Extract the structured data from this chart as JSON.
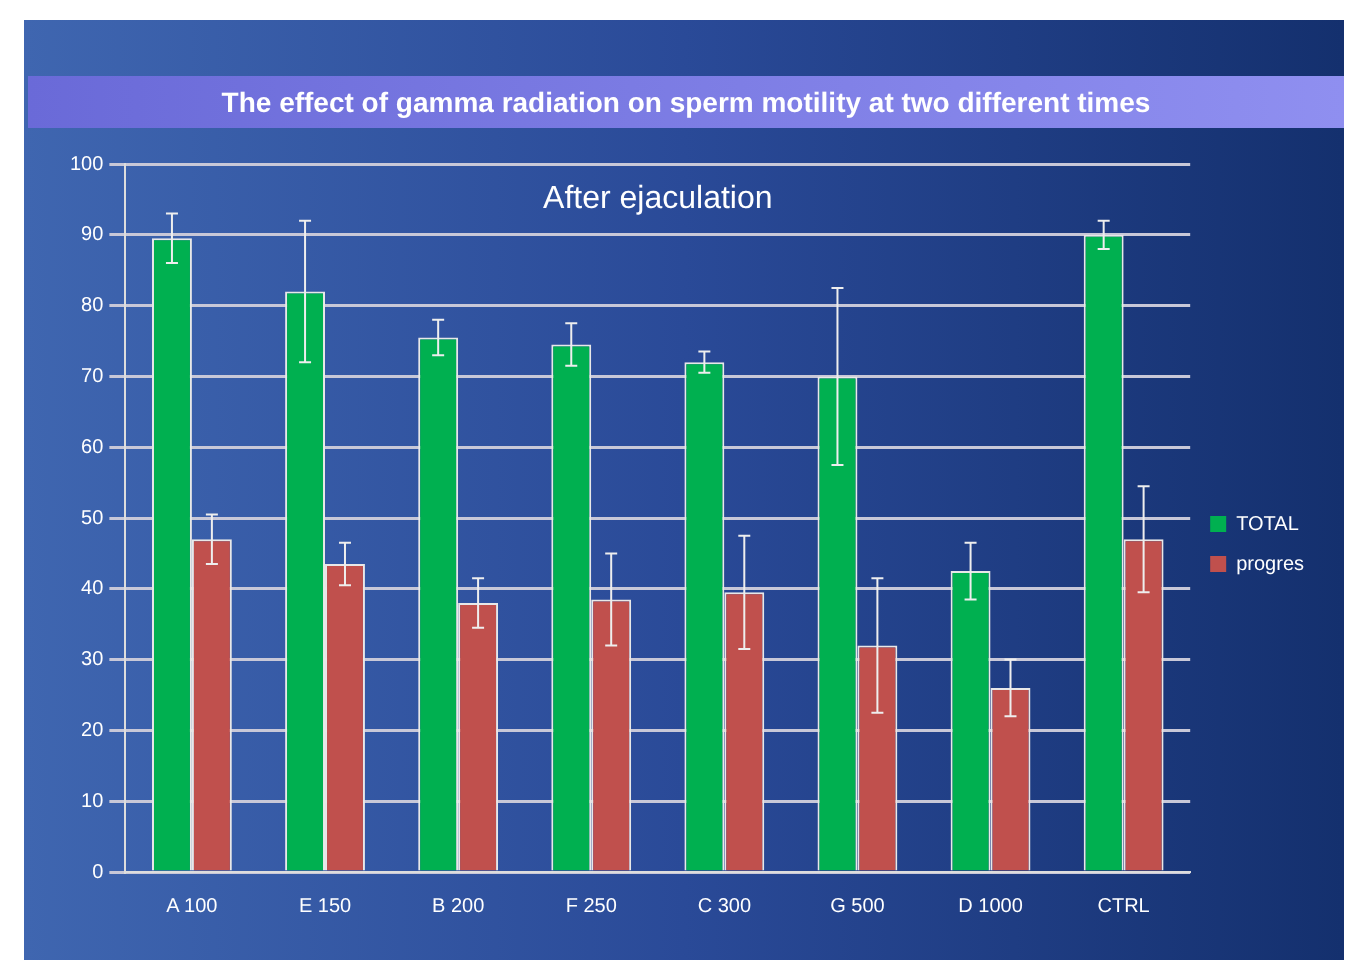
{
  "chart_data": {
    "type": "bar",
    "title": "The effect of gamma radiation on sperm motility at two different times",
    "subtitle": "After ejaculation",
    "categories": [
      "A 100",
      "E 150",
      "B 200",
      "F 250",
      "C 300",
      "G 500",
      "D 1000",
      "CTRL"
    ],
    "series": [
      {
        "name": "TOTAL",
        "color": "#00b050",
        "values": [
          89.5,
          82,
          75.5,
          74.5,
          72,
          70,
          42.5,
          90
        ],
        "errors": [
          3.5,
          10,
          2.5,
          3,
          1.5,
          12.5,
          4,
          2
        ]
      },
      {
        "name": "progres",
        "color": "#c0504d",
        "values": [
          47,
          43.5,
          38,
          38.5,
          39.5,
          32,
          26,
          47
        ],
        "errors": [
          3.5,
          3,
          3.5,
          6.5,
          8,
          9.5,
          4,
          7.5
        ]
      }
    ],
    "ylim": [
      0,
      100
    ],
    "yticks": [
      0,
      10,
      20,
      30,
      40,
      50,
      60,
      70,
      80,
      90,
      100
    ],
    "grid": "y",
    "legend": "right"
  }
}
